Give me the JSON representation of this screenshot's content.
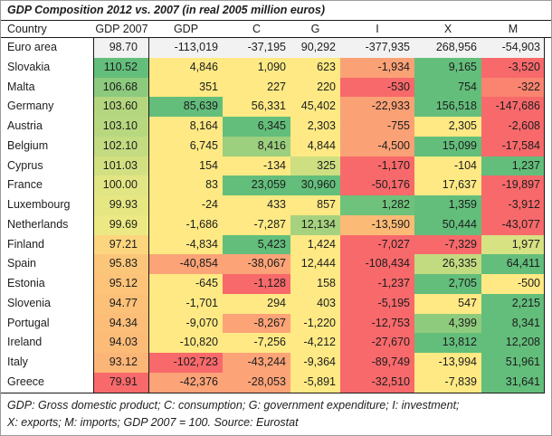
{
  "title": "GDP Composition 2012 vs. 2007 (in real 2005 million euros)",
  "table": {
    "headers": [
      "Country",
      "GDP 2007",
      "GDP",
      "C",
      "G",
      "I",
      "X",
      "M"
    ],
    "col_keys": [
      "gdp2007",
      "gdp",
      "c",
      "g",
      "i",
      "x",
      "m"
    ],
    "rows": [
      {
        "country": "Euro area",
        "cells": [
          {
            "text": "98.70",
            "bg": "#F2F2F2"
          },
          {
            "text": "-113,019",
            "bg": "#F2F2F2"
          },
          {
            "text": "-37,195",
            "bg": "#F2F2F2"
          },
          {
            "text": "90,292",
            "bg": "#F2F2F2"
          },
          {
            "text": "-377,935",
            "bg": "#F2F2F2"
          },
          {
            "text": "268,956",
            "bg": "#F2F2F2"
          },
          {
            "text": "-54,903",
            "bg": "#F2F2F2"
          }
        ]
      },
      {
        "country": "Slovakia",
        "cells": [
          {
            "text": "110.52",
            "bg": "#63BE7B"
          },
          {
            "text": "4,846",
            "bg": "#FEE984"
          },
          {
            "text": "1,090",
            "bg": "#FEE984"
          },
          {
            "text": "623",
            "bg": "#FEE984"
          },
          {
            "text": "-1,934",
            "bg": "#FBA176"
          },
          {
            "text": "9,165",
            "bg": "#63BE7B"
          },
          {
            "text": "-3,520",
            "bg": "#F8696B"
          }
        ]
      },
      {
        "country": "Malta",
        "cells": [
          {
            "text": "106.68",
            "bg": "#8CCA7D"
          },
          {
            "text": "351",
            "bg": "#FEE984"
          },
          {
            "text": "227",
            "bg": "#FEE984"
          },
          {
            "text": "220",
            "bg": "#FEE984"
          },
          {
            "text": "-530",
            "bg": "#F8696B"
          },
          {
            "text": "754",
            "bg": "#63BE7B"
          },
          {
            "text": "-322",
            "bg": "#FA8470"
          }
        ]
      },
      {
        "country": "Germany",
        "cells": [
          {
            "text": "103.60",
            "bg": "#B4D67F"
          },
          {
            "text": "85,639",
            "bg": "#63BE7B"
          },
          {
            "text": "56,331",
            "bg": "#FEE984"
          },
          {
            "text": "45,402",
            "bg": "#FEE984"
          },
          {
            "text": "-22,933",
            "bg": "#FBA176"
          },
          {
            "text": "156,518",
            "bg": "#63BE7B"
          },
          {
            "text": "-147,686",
            "bg": "#F8696B"
          }
        ]
      },
      {
        "country": "Austria",
        "cells": [
          {
            "text": "103.10",
            "bg": "#B8D880"
          },
          {
            "text": "8,164",
            "bg": "#FEE984"
          },
          {
            "text": "6,345",
            "bg": "#63BE7B"
          },
          {
            "text": "2,303",
            "bg": "#FEE984"
          },
          {
            "text": "-755",
            "bg": "#FBA176"
          },
          {
            "text": "2,305",
            "bg": "#FEE984"
          },
          {
            "text": "-2,608",
            "bg": "#F8696B"
          }
        ]
      },
      {
        "country": "Belgium",
        "cells": [
          {
            "text": "102.10",
            "bg": "#C3DB81"
          },
          {
            "text": "6,745",
            "bg": "#FEE984"
          },
          {
            "text": "8,416",
            "bg": "#9CCF7E"
          },
          {
            "text": "4,844",
            "bg": "#FEE984"
          },
          {
            "text": "-4,500",
            "bg": "#FBA176"
          },
          {
            "text": "15,099",
            "bg": "#63BE7B"
          },
          {
            "text": "-17,584",
            "bg": "#F8696B"
          }
        ]
      },
      {
        "country": "Cyprus",
        "cells": [
          {
            "text": "101.03",
            "bg": "#D3E082"
          },
          {
            "text": "154",
            "bg": "#FEE984"
          },
          {
            "text": "-134",
            "bg": "#FEE984"
          },
          {
            "text": "325",
            "bg": "#CDDF81"
          },
          {
            "text": "-1,170",
            "bg": "#F8696B"
          },
          {
            "text": "-104",
            "bg": "#FEE984"
          },
          {
            "text": "1,237",
            "bg": "#63BE7B"
          }
        ]
      },
      {
        "country": "France",
        "cells": [
          {
            "text": "100.00",
            "bg": "#E2E583"
          },
          {
            "text": "83",
            "bg": "#FEE984"
          },
          {
            "text": "23,059",
            "bg": "#63BE7B"
          },
          {
            "text": "30,960",
            "bg": "#63BE7B"
          },
          {
            "text": "-50,176",
            "bg": "#F8696B"
          },
          {
            "text": "17,637",
            "bg": "#FEE984"
          },
          {
            "text": "-19,897",
            "bg": "#F8696B"
          }
        ]
      },
      {
        "country": "Luxembourg",
        "cells": [
          {
            "text": "99.93",
            "bg": "#E6E783"
          },
          {
            "text": "-24",
            "bg": "#FEE984"
          },
          {
            "text": "433",
            "bg": "#FEE984"
          },
          {
            "text": "857",
            "bg": "#FEE984"
          },
          {
            "text": "1,282",
            "bg": "#6FC27B"
          },
          {
            "text": "1,359",
            "bg": "#63BE7B"
          },
          {
            "text": "-3,912",
            "bg": "#F8696B"
          }
        ]
      },
      {
        "country": "Netherlands",
        "cells": [
          {
            "text": "99.69",
            "bg": "#ECE984"
          },
          {
            "text": "-1,686",
            "bg": "#FEE984"
          },
          {
            "text": "-7,287",
            "bg": "#FEE984"
          },
          {
            "text": "12,134",
            "bg": "#A6D27F"
          },
          {
            "text": "-13,590",
            "bg": "#FBBA76"
          },
          {
            "text": "50,444",
            "bg": "#63BE7B"
          },
          {
            "text": "-43,077",
            "bg": "#F8696B"
          }
        ]
      },
      {
        "country": "Finland",
        "cells": [
          {
            "text": "97.21",
            "bg": "#FDD57E"
          },
          {
            "text": "-4,834",
            "bg": "#FEE984"
          },
          {
            "text": "5,423",
            "bg": "#63BE7B"
          },
          {
            "text": "1,424",
            "bg": "#FEE984"
          },
          {
            "text": "-7,027",
            "bg": "#F8696B"
          },
          {
            "text": "-7,329",
            "bg": "#F8696B"
          },
          {
            "text": "1,977",
            "bg": "#D7E283"
          }
        ]
      },
      {
        "country": "Spain",
        "cells": [
          {
            "text": "95.83",
            "bg": "#FCC67A"
          },
          {
            "text": "-40,854",
            "bg": "#FCA377"
          },
          {
            "text": "-38,067",
            "bg": "#FCA377"
          },
          {
            "text": "12,444",
            "bg": "#FEE984"
          },
          {
            "text": "-108,434",
            "bg": "#F8696B"
          },
          {
            "text": "26,335",
            "bg": "#C3DB80"
          },
          {
            "text": "64,411",
            "bg": "#63BE7B"
          }
        ]
      },
      {
        "country": "Estonia",
        "cells": [
          {
            "text": "95.12",
            "bg": "#FCC379"
          },
          {
            "text": "-645",
            "bg": "#FEE984"
          },
          {
            "text": "-1,128",
            "bg": "#F8696B"
          },
          {
            "text": "158",
            "bg": "#FEE984"
          },
          {
            "text": "-1,237",
            "bg": "#F8696B"
          },
          {
            "text": "2,705",
            "bg": "#63BE7B"
          },
          {
            "text": "-500",
            "bg": "#FEE984"
          }
        ]
      },
      {
        "country": "Slovenia",
        "cells": [
          {
            "text": "94.77",
            "bg": "#FCC078"
          },
          {
            "text": "-1,701",
            "bg": "#FEE984"
          },
          {
            "text": "294",
            "bg": "#FEE984"
          },
          {
            "text": "403",
            "bg": "#FEE984"
          },
          {
            "text": "-5,195",
            "bg": "#F8696B"
          },
          {
            "text": "547",
            "bg": "#FEE984"
          },
          {
            "text": "2,215",
            "bg": "#63BE7B"
          }
        ]
      },
      {
        "country": "Portugal",
        "cells": [
          {
            "text": "94.34",
            "bg": "#FCBD78"
          },
          {
            "text": "-9,070",
            "bg": "#FEE984"
          },
          {
            "text": "-8,267",
            "bg": "#FCA377"
          },
          {
            "text": "-1,220",
            "bg": "#FEE984"
          },
          {
            "text": "-12,753",
            "bg": "#F8696B"
          },
          {
            "text": "4,399",
            "bg": "#8FCB7D"
          },
          {
            "text": "8,341",
            "bg": "#63BE7B"
          }
        ]
      },
      {
        "country": "Ireland",
        "cells": [
          {
            "text": "94.03",
            "bg": "#FCBB77"
          },
          {
            "text": "-10,820",
            "bg": "#FEE984"
          },
          {
            "text": "-7,256",
            "bg": "#FEE984"
          },
          {
            "text": "-4,212",
            "bg": "#FEE984"
          },
          {
            "text": "-27,670",
            "bg": "#F8696B"
          },
          {
            "text": "13,812",
            "bg": "#63BE7B"
          },
          {
            "text": "12,208",
            "bg": "#63BE7B"
          }
        ]
      },
      {
        "country": "Italy",
        "cells": [
          {
            "text": "93.12",
            "bg": "#FBB576"
          },
          {
            "text": "-102,723",
            "bg": "#F8696B"
          },
          {
            "text": "-43,244",
            "bg": "#FCA377"
          },
          {
            "text": "-9,364",
            "bg": "#FEE984"
          },
          {
            "text": "-89,749",
            "bg": "#F8696B"
          },
          {
            "text": "-13,994",
            "bg": "#FEE984"
          },
          {
            "text": "51,961",
            "bg": "#63BE7B"
          }
        ]
      },
      {
        "country": "Greece",
        "cells": [
          {
            "text": "79.91",
            "bg": "#F8696B"
          },
          {
            "text": "-42,376",
            "bg": "#FCA377"
          },
          {
            "text": "-28,053",
            "bg": "#FCA377"
          },
          {
            "text": "-5,891",
            "bg": "#FEE984"
          },
          {
            "text": "-32,510",
            "bg": "#F8696B"
          },
          {
            "text": "-7,839",
            "bg": "#FEE984"
          },
          {
            "text": "31,641",
            "bg": "#63BE7B"
          }
        ]
      }
    ]
  },
  "footnote": {
    "line1": "GDP: Gross domestic product; C: consumption; G: government expenditure; I: investment;",
    "line2": "X: exports; M: imports; GDP 2007 = 100. Source: Eurostat"
  },
  "colors": {
    "heat_green": "#63BE7B",
    "heat_yellow": "#FEE984",
    "heat_orange": "#FCA377",
    "heat_red": "#F8696B",
    "euro_area_row": "#F2F2F2",
    "grid_line": "#1a1a1a"
  },
  "chart_data": {
    "type": "heatmap",
    "title": "GDP Composition 2012 vs. 2007 (in real 2005 million euros)",
    "columns": [
      "GDP 2007",
      "GDP",
      "C",
      "G",
      "I",
      "X",
      "M"
    ],
    "rows": [
      "Euro area",
      "Slovakia",
      "Malta",
      "Germany",
      "Austria",
      "Belgium",
      "Cyprus",
      "France",
      "Luxembourg",
      "Netherlands",
      "Finland",
      "Spain",
      "Estonia",
      "Slovenia",
      "Portugal",
      "Ireland",
      "Italy",
      "Greece"
    ],
    "values": [
      [
        98.7,
        -113019,
        -37195,
        90292,
        -377935,
        268956,
        -54903
      ],
      [
        110.52,
        4846,
        1090,
        623,
        -1934,
        9165,
        -3520
      ],
      [
        106.68,
        351,
        227,
        220,
        -530,
        754,
        -322
      ],
      [
        103.6,
        85639,
        56331,
        45402,
        -22933,
        156518,
        -147686
      ],
      [
        103.1,
        8164,
        6345,
        2303,
        -755,
        2305,
        -2608
      ],
      [
        102.1,
        6745,
        8416,
        4844,
        -4500,
        15099,
        -17584
      ],
      [
        101.03,
        154,
        -134,
        325,
        -1170,
        -104,
        1237
      ],
      [
        100.0,
        83,
        23059,
        30960,
        -50176,
        17637,
        -19897
      ],
      [
        99.93,
        -24,
        433,
        857,
        1282,
        1359,
        -3912
      ],
      [
        99.69,
        -1686,
        -7287,
        12134,
        -13590,
        50444,
        -43077
      ],
      [
        97.21,
        -4834,
        5423,
        1424,
        -7027,
        -7329,
        1977
      ],
      [
        95.83,
        -40854,
        -38067,
        12444,
        -108434,
        26335,
        64411
      ],
      [
        95.12,
        -645,
        -1128,
        158,
        -1237,
        2705,
        -500
      ],
      [
        94.77,
        -1701,
        294,
        403,
        -5195,
        547,
        2215
      ],
      [
        94.34,
        -9070,
        -8267,
        -1220,
        -12753,
        4399,
        8341
      ],
      [
        94.03,
        -10820,
        -7256,
        -4212,
        -27670,
        13812,
        12208
      ],
      [
        93.12,
        -102723,
        -43244,
        -9364,
        -89749,
        -13994,
        51961
      ],
      [
        79.91,
        -42376,
        -28053,
        -5891,
        -32510,
        -7839,
        31641
      ]
    ],
    "color_scale": "red-yellow-green",
    "legend_position": "none",
    "grid": false,
    "notes": "GDP: Gross domestic product; C: consumption; G: government expenditure; I: investment; X: exports; M: imports; GDP 2007 = 100. Source: Eurostat"
  }
}
